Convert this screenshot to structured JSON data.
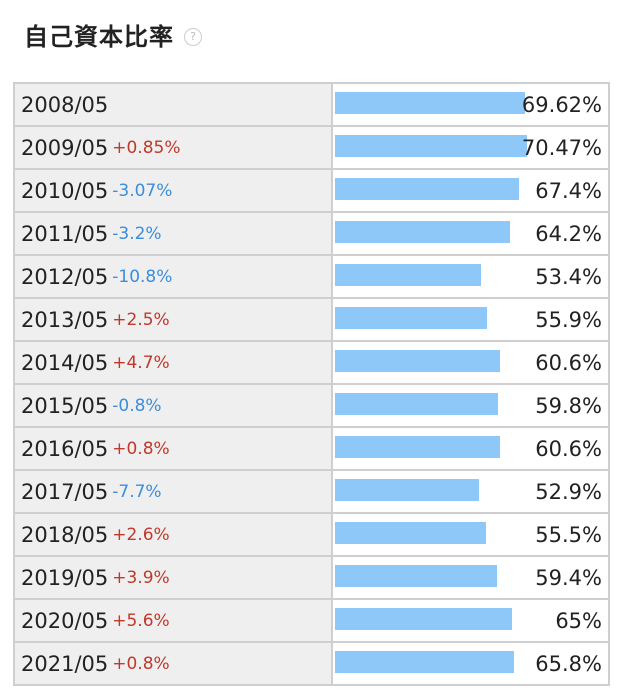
{
  "header": {
    "title": "自己資本比率",
    "help_icon_glyph": "?"
  },
  "colors": {
    "bar": "#8dc8f8",
    "increase": "#c0392b",
    "decrease": "#3b8edb"
  },
  "chart_data": {
    "type": "bar",
    "orientation": "horizontal",
    "title": "自己資本比率",
    "categories": [
      "2008/05",
      "2009/05",
      "2010/05",
      "2011/05",
      "2012/05",
      "2013/05",
      "2014/05",
      "2015/05",
      "2016/05",
      "2017/05",
      "2018/05",
      "2019/05",
      "2020/05",
      "2021/05"
    ],
    "values": [
      69.62,
      70.47,
      67.4,
      64.2,
      53.4,
      55.9,
      60.6,
      59.8,
      60.6,
      52.9,
      55.5,
      59.4,
      65,
      65.8
    ],
    "value_labels": [
      "69.62%",
      "70.47%",
      "67.4%",
      "64.2%",
      "53.4%",
      "55.9%",
      "60.6%",
      "59.8%",
      "60.6%",
      "52.9%",
      "55.5%",
      "59.4%",
      "65%",
      "65.8%"
    ],
    "changes": [
      "",
      "+0.85%",
      "-3.07%",
      "-3.2%",
      "-10.8%",
      "+2.5%",
      "+4.7%",
      "-0.8%",
      "+0.8%",
      "-7.7%",
      "+2.6%",
      "+3.9%",
      "+5.6%",
      "+0.8%"
    ],
    "xlim": [
      0,
      100
    ]
  }
}
